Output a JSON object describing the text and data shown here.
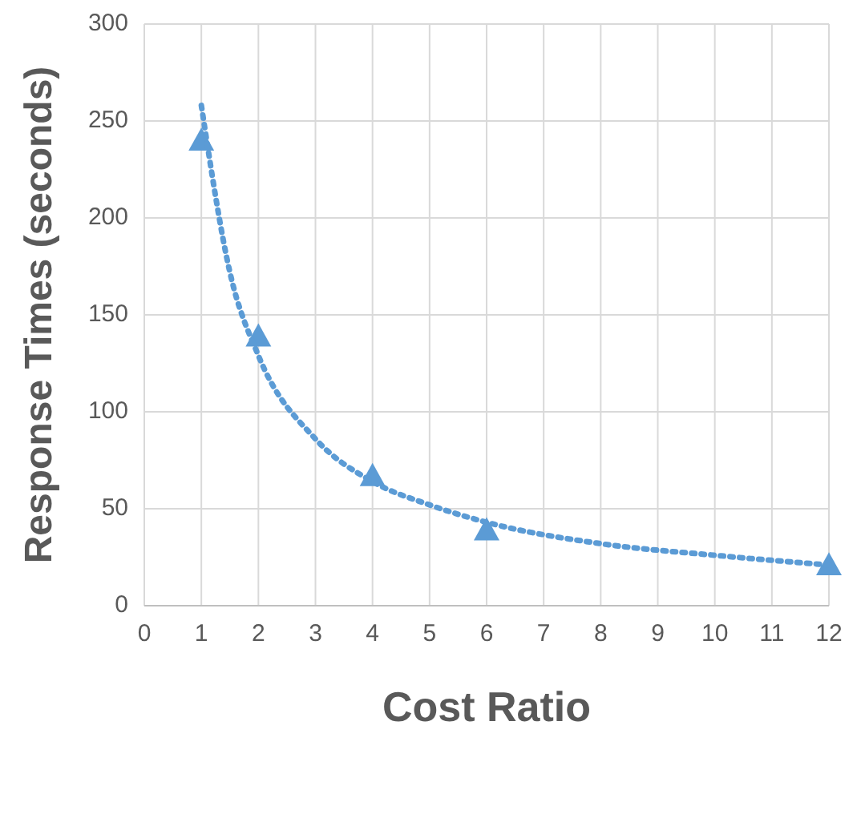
{
  "chart_data": {
    "type": "scatter",
    "xlabel": "Cost Ratio",
    "ylabel": "Response Times (seconds)",
    "xlim": [
      0,
      12
    ],
    "xticks": [
      0,
      1,
      2,
      3,
      4,
      5,
      6,
      7,
      8,
      9,
      10,
      11,
      12
    ],
    "ylim": [
      0,
      300
    ],
    "yticks": [
      0,
      50,
      100,
      150,
      200,
      250,
      300
    ],
    "grid": true,
    "marker": "triangle",
    "series": [
      {
        "color": "#5b9bd5",
        "x": [
          1,
          2,
          4,
          6,
          12
        ],
        "values": [
          240,
          139,
          67,
          39,
          21
        ]
      },
      {
        "type": "line",
        "color": "#5b9bd5",
        "line_style": "dotted",
        "marker": "none",
        "x": [
          1,
          1.5,
          2,
          3,
          4,
          5,
          6,
          8,
          10,
          12
        ],
        "values": [
          258,
          172,
          129,
          86,
          64,
          52,
          43,
          32,
          26,
          21
        ]
      }
    ]
  }
}
